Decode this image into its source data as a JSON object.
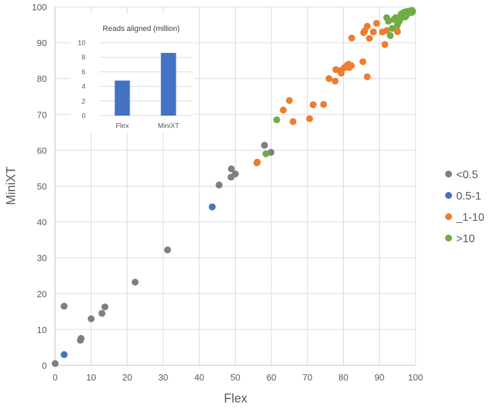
{
  "chart_data": [
    {
      "type": "scatter",
      "xlabel": "Flex",
      "ylabel": "MiniXT",
      "xlim": [
        0,
        100
      ],
      "ylim": [
        0,
        100
      ],
      "xticks": [
        "0",
        "10",
        "20",
        "30",
        "40",
        "50",
        "60",
        "70",
        "80",
        "90",
        "100"
      ],
      "yticks": [
        "0",
        "10",
        "20",
        "30",
        "40",
        "50",
        "60",
        "70",
        "80",
        "90",
        "100"
      ],
      "grid": true,
      "legend_position": "right",
      "series": [
        {
          "name": "<0.5",
          "color": "#7f7f7f",
          "points": [
            [
              0,
              0.5
            ],
            [
              2.5,
              16.5
            ],
            [
              7,
              7
            ],
            [
              7.2,
              7.5
            ],
            [
              10,
              13
            ],
            [
              13,
              14.5
            ],
            [
              13.8,
              16.3
            ],
            [
              22.2,
              23.2
            ],
            [
              31.2,
              32.2
            ],
            [
              45.5,
              50.3
            ],
            [
              48.8,
              52.5
            ],
            [
              48.9,
              54.8
            ],
            [
              50,
              53.4
            ],
            [
              56,
              56.5
            ],
            [
              58.1,
              61.4
            ],
            [
              59.9,
              59.4
            ]
          ]
        },
        {
          "name": "0.5-1",
          "color": "#4472c4",
          "points": [
            [
              2.5,
              3
            ],
            [
              43.6,
              44.2
            ]
          ]
        },
        {
          "name": "_1-10",
          "color": "#ed7d31",
          "points": [
            [
              56.1,
              56.7
            ],
            [
              63.3,
              71.2
            ],
            [
              65,
              73.9
            ],
            [
              66,
              68
            ],
            [
              70.6,
              68.8
            ],
            [
              71.6,
              72.7
            ],
            [
              74.5,
              72.8
            ],
            [
              76,
              80
            ],
            [
              77.7,
              79.3
            ],
            [
              77.9,
              82.5
            ],
            [
              79.2,
              82.2
            ],
            [
              79.4,
              81.5
            ],
            [
              80.2,
              83
            ],
            [
              81,
              83.7
            ],
            [
              81.4,
              84
            ],
            [
              81.6,
              83.1
            ],
            [
              82.2,
              83.6
            ],
            [
              82.3,
              91.3
            ],
            [
              85.4,
              84.7
            ],
            [
              85.6,
              92.8
            ],
            [
              85.9,
              93.3
            ],
            [
              86.6,
              80.5
            ],
            [
              86.6,
              94.6
            ],
            [
              87.2,
              91.2
            ],
            [
              88.3,
              93
            ],
            [
              89.2,
              95.4
            ],
            [
              90.8,
              93
            ],
            [
              91.5,
              89.5
            ],
            [
              92,
              93.4
            ],
            [
              94.7,
              94
            ],
            [
              95,
              93.1
            ]
          ]
        },
        {
          "name": ">10",
          "color": "#70ad47",
          "points": [
            [
              61.5,
              68.5
            ],
            [
              58.5,
              59
            ],
            [
              92,
              97
            ],
            [
              92.5,
              96
            ],
            [
              93,
              92
            ],
            [
              93.5,
              94
            ],
            [
              94,
              96.5
            ],
            [
              94.5,
              97
            ],
            [
              95,
              95
            ],
            [
              95.5,
              96
            ],
            [
              96,
              98
            ],
            [
              96.2,
              97
            ],
            [
              96.5,
              97.5
            ],
            [
              96.8,
              98.5
            ],
            [
              97,
              98
            ],
            [
              97.2,
              97.2
            ],
            [
              97.5,
              98.7
            ],
            [
              97.8,
              98.5
            ],
            [
              98,
              98.3
            ],
            [
              98.2,
              98.8
            ],
            [
              98.5,
              98.6
            ],
            [
              98.8,
              98.9
            ],
            [
              99,
              99
            ],
            [
              99.2,
              98.7
            ],
            [
              95.8,
              96.8
            ],
            [
              97.6,
              97.8
            ],
            [
              98.9,
              98.4
            ]
          ]
        }
      ]
    },
    {
      "type": "bar",
      "title": "Reads aligned (million)",
      "categories": [
        "Flex",
        "MiniXT"
      ],
      "values": [
        4.8,
        8.6
      ],
      "ylim": [
        0,
        10
      ],
      "yticks": [
        "0",
        "2",
        "4",
        "6",
        "8",
        "10"
      ],
      "grid": true,
      "color": "#4472c4"
    }
  ]
}
